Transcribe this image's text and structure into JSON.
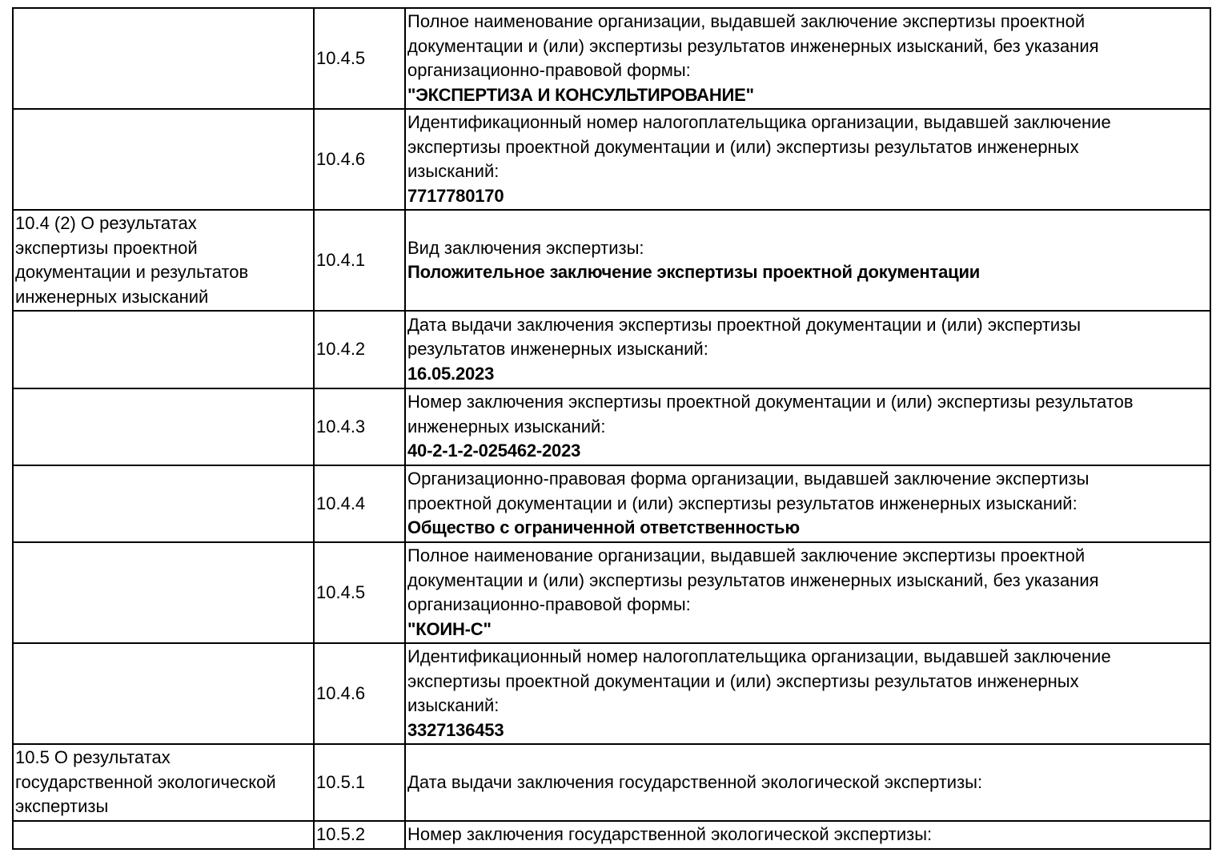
{
  "rows": [
    {
      "section": "",
      "code": "10.4.5",
      "label": "Полное наименование организации, выдавшей заключение экспертизы проектной\nдокументации и (или) экспертизы результатов инженерных изысканий, без указания\nорганизационно-правовой формы:",
      "value": "\"ЭКСПЕРТИЗА И КОНСУЛЬТИРОВАНИЕ\""
    },
    {
      "section": "",
      "code": "10.4.6",
      "label": "Идентификационный номер налогоплательщика организации, выдавшей заключение\nэкспертизы проектной документации и (или) экспертизы результатов инженерных\nизысканий:",
      "value": "7717780170"
    },
    {
      "section": "10.4 (2) О результатах\nэкспертизы проектной\nдокументации и результатов\nинженерных изысканий",
      "code": "10.4.1",
      "label": "Вид заключения экспертизы:",
      "value": "Положительное заключение экспертизы проектной документации"
    },
    {
      "section": "",
      "code": "10.4.2",
      "label": "Дата выдачи заключения экспертизы проектной документации и (или) экспертизы\nрезультатов инженерных изысканий:",
      "value": "16.05.2023"
    },
    {
      "section": "",
      "code": "10.4.3",
      "label": "Номер заключения экспертизы проектной документации и (или) экспертизы результатов\nинженерных изысканий:",
      "value": "40-2-1-2-025462-2023"
    },
    {
      "section": "",
      "code": "10.4.4",
      "label": "Организационно-правовая форма организации, выдавшей заключение экспертизы\nпроектной документации и (или) экспертизы результатов инженерных изысканий:",
      "value": "Общество с ограниченной ответственностью"
    },
    {
      "section": "",
      "code": "10.4.5",
      "label": "Полное наименование организации, выдавшей заключение экспертизы проектной\nдокументации и (или) экспертизы результатов инженерных изысканий, без указания\nорганизационно-правовой формы:",
      "value": "\"КОИН-С\""
    },
    {
      "section": "",
      "code": "10.4.6",
      "label": "Идентификационный номер налогоплательщика организации, выдавшей заключение\nэкспертизы проектной документации и (или) экспертизы результатов инженерных\nизысканий:",
      "value": "3327136453"
    },
    {
      "section": "10.5 О результатах\nгосударственной экологической\nэкспертизы",
      "code": "10.5.1",
      "label": "Дата выдачи заключения государственной экологической экспертизы:",
      "value": ""
    },
    {
      "section": "",
      "code": "10.5.2",
      "label": "Номер заключения государственной экологической экспертизы:",
      "value": ""
    }
  ]
}
